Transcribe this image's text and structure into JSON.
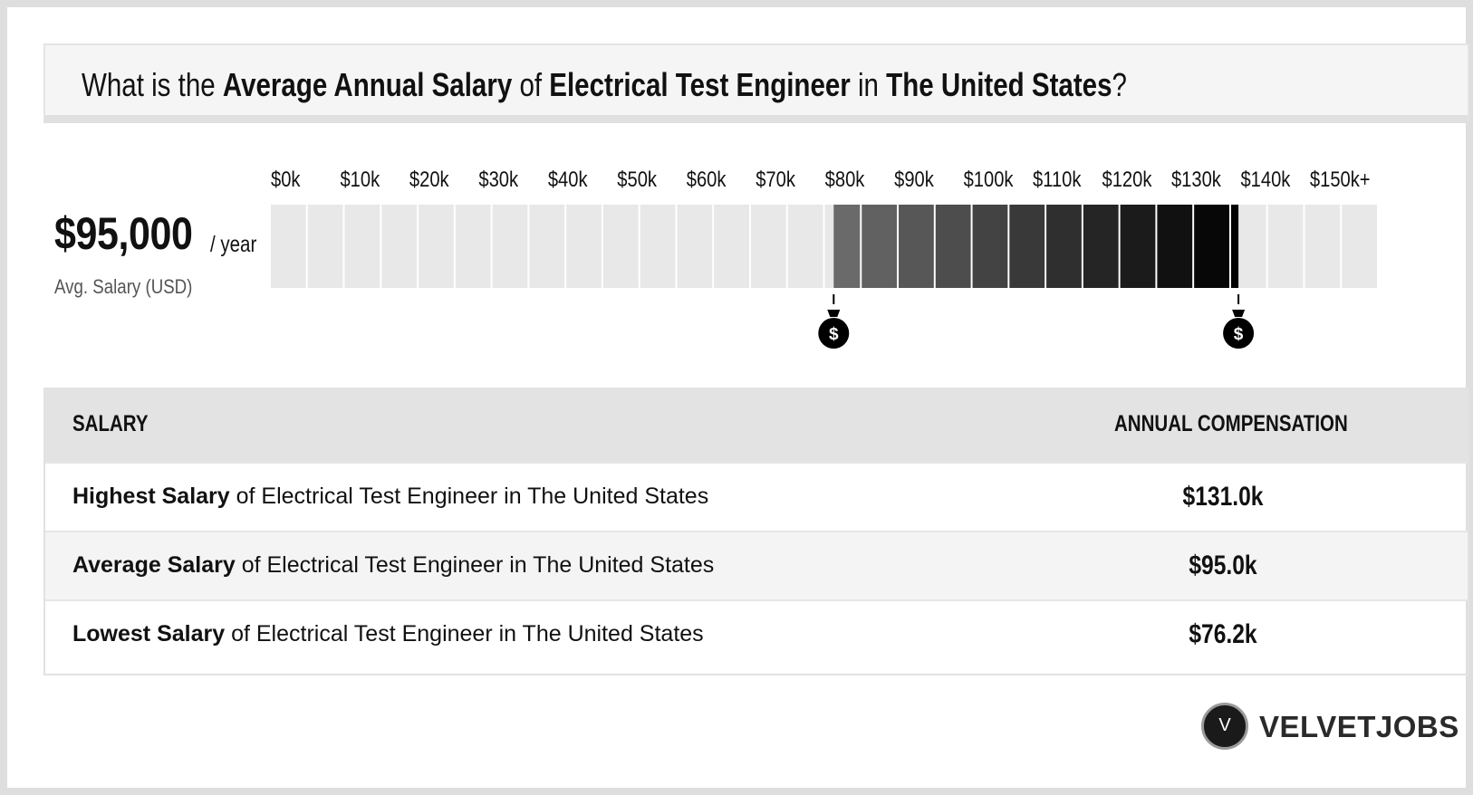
{
  "header": {
    "q_prefix": "What is the ",
    "q_metric": "Average Annual Salary",
    "q_of": " of ",
    "q_job": "Electrical Test Engineer",
    "q_in": " in ",
    "q_location": "The United States",
    "q_suffix": "?"
  },
  "summary": {
    "avg_value": "$95,000",
    "avg_unit": "/ year",
    "avg_label": "Avg. Salary (USD)"
  },
  "chart_data": {
    "type": "bar",
    "ticks": [
      "$0k",
      "$10k",
      "$20k",
      "$30k",
      "$40k",
      "$50k",
      "$60k",
      "$70k",
      "$80k",
      "$90k",
      "$100k",
      "$110k",
      "$120k",
      "$130k",
      "$140k",
      "$150k+"
    ],
    "range_low": 76.2,
    "range_high": 131.0,
    "average": 95.0,
    "unit": "$k",
    "xlim": [
      0,
      150
    ],
    "colors": {
      "empty": "#e8e8e8",
      "range_start": "#6e6e6e",
      "range_end": "#000000"
    },
    "marker_icon": "money-bag-icon",
    "marker_symbol": "$"
  },
  "table": {
    "col_salary": "SALARY",
    "col_comp": "ANNUAL COMPENSATION",
    "rows": [
      {
        "bold": "Highest Salary",
        "rest": " of Electrical Test Engineer in The United States",
        "value": "$131.0k"
      },
      {
        "bold": "Average Salary",
        "rest": " of Electrical Test Engineer in The United States",
        "value": "$95.0k"
      },
      {
        "bold": "Lowest Salary",
        "rest": " of Electrical Test Engineer in The United States",
        "value": "$76.2k"
      }
    ]
  },
  "brand": {
    "logo_letter": "V",
    "name": "VELVETJOBS"
  }
}
